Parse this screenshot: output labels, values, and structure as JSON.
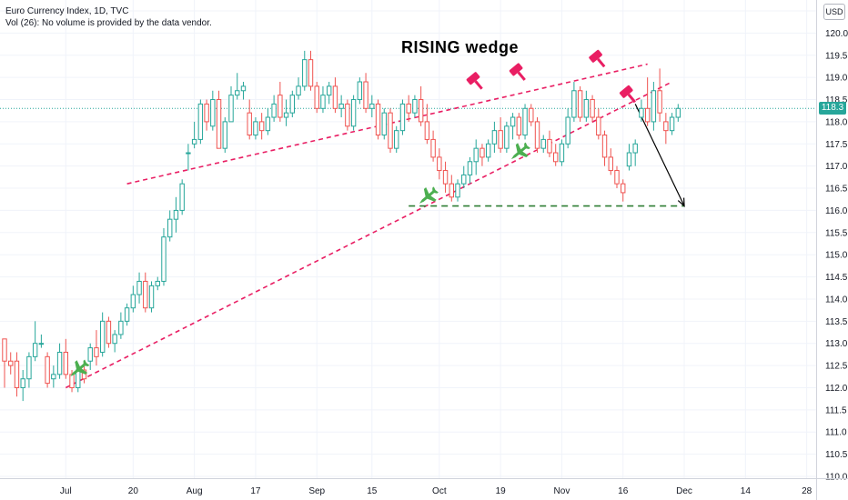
{
  "header": {
    "line1": "Euro Currency Index, 1D, TVC",
    "line2": "Vol (26): No volume is provided by the data vendor."
  },
  "currency_button": "USD",
  "last_price_label": "118.3",
  "annotation_text": "RISING  wedge",
  "colors": {
    "up": "#26a69a",
    "down": "#ef5350",
    "trendline": "#e91e63",
    "support": "#2e7d32",
    "buy_marker": "#4caf50",
    "sell_marker": "#e91e63",
    "last_price_line": "#26a69a"
  },
  "chart_data": {
    "type": "candlestick",
    "title": "Euro Currency Index, 1D, TVC",
    "ylim": [
      110.0,
      120.5
    ],
    "y_ticks": [
      "110.0",
      "110.5",
      "111.0",
      "111.5",
      "112.0",
      "112.5",
      "113.0",
      "113.5",
      "114.0",
      "114.5",
      "115.0",
      "115.5",
      "116.0",
      "116.5",
      "117.0",
      "117.5",
      "118.0",
      "118.5",
      "119.0",
      "119.5",
      "120.0",
      "120.5"
    ],
    "x_ticks": [
      {
        "label": "Jul",
        "index": 10
      },
      {
        "label": "20",
        "index": 21
      },
      {
        "label": "Aug",
        "index": 31
      },
      {
        "label": "17",
        "index": 41
      },
      {
        "label": "Sep",
        "index": 51
      },
      {
        "label": "15",
        "index": 60
      },
      {
        "label": "Oct",
        "index": 71
      },
      {
        "label": "19",
        "index": 81
      },
      {
        "label": "Nov",
        "index": 91
      },
      {
        "label": "16",
        "index": 101
      },
      {
        "label": "Dec",
        "index": 111
      },
      {
        "label": "14",
        "index": 121
      },
      {
        "label": "28",
        "index": 131
      }
    ],
    "candles": [
      [
        113.1,
        113.1,
        112.0,
        112.6
      ],
      [
        112.6,
        112.8,
        112.3,
        112.5
      ],
      [
        112.6,
        112.8,
        111.8,
        112.0
      ],
      [
        112.0,
        112.4,
        111.7,
        112.2
      ],
      [
        112.2,
        112.8,
        112.0,
        112.7
      ],
      [
        112.7,
        113.5,
        112.6,
        113.0
      ],
      [
        113.0,
        113.2,
        112.9,
        113.0
      ],
      [
        112.7,
        112.8,
        112.0,
        112.1
      ],
      [
        112.2,
        112.5,
        112.0,
        112.3
      ],
      [
        112.3,
        113.0,
        112.2,
        112.8
      ],
      [
        112.8,
        113.1,
        112.2,
        112.3
      ],
      [
        112.3,
        112.4,
        111.9,
        112.0
      ],
      [
        112.0,
        112.5,
        111.9,
        112.4
      ],
      [
        112.4,
        112.6,
        112.1,
        112.2
      ],
      [
        112.6,
        113.0,
        112.4,
        112.9
      ],
      [
        112.9,
        113.3,
        112.5,
        112.7
      ],
      [
        112.8,
        113.7,
        112.7,
        113.5
      ],
      [
        113.5,
        113.6,
        112.9,
        113.0
      ],
      [
        113.0,
        113.3,
        112.8,
        113.2
      ],
      [
        113.2,
        113.7,
        113.1,
        113.5
      ],
      [
        113.5,
        113.9,
        113.4,
        113.8
      ],
      [
        113.8,
        114.3,
        113.7,
        114.1
      ],
      [
        114.1,
        114.6,
        113.9,
        114.4
      ],
      [
        114.4,
        114.6,
        113.7,
        113.8
      ],
      [
        113.8,
        114.4,
        113.7,
        114.3
      ],
      [
        114.3,
        114.5,
        114.2,
        114.4
      ],
      [
        114.4,
        115.6,
        114.3,
        115.4
      ],
      [
        115.4,
        116.0,
        115.3,
        115.8
      ],
      [
        115.8,
        116.3,
        115.5,
        116.0
      ],
      [
        116.0,
        116.7,
        115.9,
        116.6
      ],
      [
        117.3,
        117.5,
        116.9,
        117.3
      ],
      [
        117.5,
        118.0,
        117.4,
        117.6
      ],
      [
        117.6,
        118.5,
        117.5,
        118.4
      ],
      [
        118.4,
        118.5,
        117.8,
        118.0
      ],
      [
        117.9,
        118.7,
        117.8,
        118.5
      ],
      [
        118.5,
        118.7,
        117.4,
        117.4
      ],
      [
        117.4,
        118.1,
        117.3,
        118.0
      ],
      [
        118.0,
        118.8,
        118.0,
        118.6
      ],
      [
        118.6,
        119.1,
        118.5,
        118.7
      ],
      [
        118.7,
        118.9,
        118.5,
        118.8
      ],
      [
        118.2,
        118.5,
        117.6,
        117.7
      ],
      [
        117.7,
        118.1,
        117.6,
        118.0
      ],
      [
        118.0,
        118.2,
        117.6,
        117.8
      ],
      [
        117.8,
        118.3,
        117.7,
        118.1
      ],
      [
        118.1,
        118.6,
        118.0,
        118.4
      ],
      [
        118.6,
        118.9,
        118.0,
        118.1
      ],
      [
        118.1,
        118.5,
        117.9,
        118.2
      ],
      [
        118.2,
        118.7,
        118.1,
        118.6
      ],
      [
        118.6,
        119.0,
        118.5,
        118.8
      ],
      [
        118.8,
        119.6,
        118.7,
        119.4
      ],
      [
        119.4,
        119.6,
        118.7,
        118.8
      ],
      [
        118.8,
        118.9,
        118.2,
        118.3
      ],
      [
        118.3,
        118.8,
        118.2,
        118.6
      ],
      [
        118.6,
        118.9,
        118.4,
        118.8
      ],
      [
        118.8,
        119.0,
        118.2,
        118.3
      ],
      [
        118.3,
        118.6,
        118.1,
        118.4
      ],
      [
        118.4,
        118.5,
        117.8,
        117.9
      ],
      [
        117.9,
        118.6,
        117.8,
        118.5
      ],
      [
        118.5,
        119.0,
        118.4,
        118.9
      ],
      [
        118.9,
        119.1,
        118.2,
        118.3
      ],
      [
        118.3,
        118.6,
        118.1,
        118.4
      ],
      [
        118.4,
        118.5,
        117.6,
        117.7
      ],
      [
        117.7,
        118.3,
        117.6,
        118.2
      ],
      [
        118.2,
        118.3,
        117.3,
        117.4
      ],
      [
        117.4,
        117.9,
        117.3,
        117.8
      ],
      [
        117.8,
        118.5,
        117.7,
        118.4
      ],
      [
        118.4,
        118.6,
        118.0,
        118.2
      ],
      [
        118.2,
        118.6,
        118.1,
        118.5
      ],
      [
        118.5,
        118.8,
        117.9,
        118.0
      ],
      [
        118.0,
        118.4,
        117.5,
        117.6
      ],
      [
        117.6,
        117.8,
        117.1,
        117.2
      ],
      [
        117.2,
        117.4,
        116.7,
        116.9
      ],
      [
        116.9,
        117.1,
        116.4,
        116.6
      ],
      [
        116.6,
        116.8,
        116.2,
        116.3
      ],
      [
        116.3,
        116.7,
        116.2,
        116.6
      ],
      [
        116.6,
        117.0,
        116.5,
        116.8
      ],
      [
        116.8,
        117.2,
        116.6,
        117.1
      ],
      [
        117.1,
        117.6,
        116.8,
        117.4
      ],
      [
        117.4,
        117.5,
        117.0,
        117.2
      ],
      [
        117.2,
        117.6,
        117.1,
        117.5
      ],
      [
        117.5,
        118.0,
        117.3,
        117.8
      ],
      [
        117.8,
        118.1,
        117.3,
        117.4
      ],
      [
        117.4,
        118.0,
        117.3,
        117.9
      ],
      [
        117.9,
        118.2,
        117.6,
        118.1
      ],
      [
        118.1,
        118.2,
        117.6,
        117.7
      ],
      [
        117.7,
        118.4,
        117.6,
        118.3
      ],
      [
        118.3,
        118.4,
        117.9,
        118.0
      ],
      [
        118.0,
        118.1,
        117.3,
        117.4
      ],
      [
        117.4,
        117.7,
        117.3,
        117.6
      ],
      [
        117.6,
        117.8,
        117.2,
        117.3
      ],
      [
        117.3,
        117.5,
        117.0,
        117.1
      ],
      [
        117.1,
        117.6,
        117.0,
        117.5
      ],
      [
        117.5,
        118.3,
        117.4,
        118.1
      ],
      [
        118.1,
        118.9,
        118.0,
        118.7
      ],
      [
        118.7,
        118.8,
        118.0,
        118.1
      ],
      [
        118.1,
        118.7,
        118.0,
        118.5
      ],
      [
        118.5,
        118.6,
        118.0,
        118.1
      ],
      [
        118.1,
        118.3,
        117.6,
        117.7
      ],
      [
        117.7,
        117.8,
        117.0,
        117.2
      ],
      [
        117.2,
        117.4,
        116.8,
        116.9
      ],
      [
        116.9,
        117.0,
        116.5,
        116.6
      ],
      [
        116.6,
        116.7,
        116.2,
        116.4
      ],
      [
        117.0,
        117.5,
        116.9,
        117.3
      ],
      [
        117.3,
        117.6,
        117.0,
        117.5
      ],
      [
        118.1,
        118.5,
        118.0,
        118.3
      ],
      [
        118.3,
        119.0,
        117.9,
        118.0
      ],
      [
        118.0,
        118.9,
        117.8,
        118.7
      ],
      [
        118.7,
        119.2,
        118.0,
        118.2
      ],
      [
        118.0,
        118.2,
        117.5,
        117.8
      ],
      [
        117.8,
        118.2,
        117.7,
        118.1
      ],
      [
        118.1,
        118.4,
        118.0,
        118.3
      ]
    ],
    "overlays": {
      "trendlines": [
        {
          "style": "dashed",
          "color": "#e91e63",
          "from": [
            20,
            116.6
          ],
          "to": [
            105,
            119.3
          ]
        },
        {
          "style": "dashed",
          "color": "#e91e63",
          "from": [
            10,
            112.0
          ],
          "to": [
            109,
            118.9
          ]
        },
        {
          "style": "dashed",
          "color": "#2e7d32",
          "from": [
            66,
            116.1
          ],
          "to": [
            111,
            116.1
          ]
        }
      ],
      "arrow": {
        "from": [
          103,
          118.4
        ],
        "to": [
          111,
          116.1
        ]
      },
      "buy_markers": [
        [
          12,
          112.4
        ],
        [
          69,
          116.3
        ],
        [
          84,
          117.3
        ]
      ],
      "sell_markers": [
        [
          77,
          118.9
        ],
        [
          84,
          119.1
        ],
        [
          97,
          119.4
        ],
        [
          102,
          118.6
        ]
      ]
    },
    "last_price": 118.3
  }
}
